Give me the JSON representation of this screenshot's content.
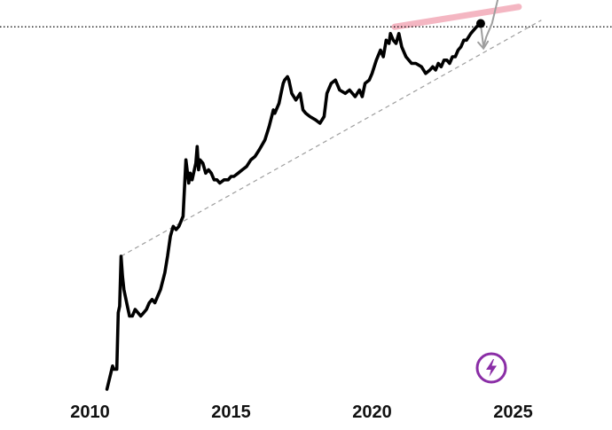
{
  "chart_data": {
    "type": "line",
    "title": "",
    "xlabel": "",
    "ylabel": "",
    "xlim": [
      2008.6,
      2028.0
    ],
    "ylog": true,
    "grid": false,
    "legend": "none",
    "x_ticks": [
      2010,
      2015,
      2020,
      2025
    ],
    "x_tick_labels": [
      "2010",
      "2015",
      "2020",
      "2025"
    ],
    "series": [
      {
        "color": "#000000",
        "points": [
          [
            2010.6,
            0.0
          ],
          [
            2010.8,
            0.7
          ],
          [
            2010.85,
            0.6
          ],
          [
            2010.95,
            0.6
          ],
          [
            2011.0,
            2.3
          ],
          [
            2011.05,
            2.5
          ],
          [
            2011.1,
            4.0
          ],
          [
            2011.15,
            3.4
          ],
          [
            2011.2,
            3.0
          ],
          [
            2011.3,
            2.6
          ],
          [
            2011.4,
            2.2
          ],
          [
            2011.5,
            2.2
          ],
          [
            2011.6,
            2.4
          ],
          [
            2011.7,
            2.3
          ],
          [
            2011.8,
            2.2
          ],
          [
            2011.9,
            2.3
          ],
          [
            2012.0,
            2.4
          ],
          [
            2012.1,
            2.6
          ],
          [
            2012.2,
            2.7
          ],
          [
            2012.3,
            2.6
          ],
          [
            2012.4,
            2.8
          ],
          [
            2012.5,
            3.0
          ],
          [
            2012.65,
            3.5
          ],
          [
            2012.75,
            4.0
          ],
          [
            2012.85,
            4.6
          ],
          [
            2012.95,
            4.9
          ],
          [
            2013.05,
            4.8
          ],
          [
            2013.15,
            4.9
          ],
          [
            2013.3,
            5.2
          ],
          [
            2013.4,
            6.9
          ],
          [
            2013.5,
            6.2
          ],
          [
            2013.55,
            6.5
          ],
          [
            2013.62,
            6.3
          ],
          [
            2013.75,
            6.8
          ],
          [
            2013.8,
            7.3
          ],
          [
            2013.85,
            6.6
          ],
          [
            2013.9,
            6.9
          ],
          [
            2014.0,
            6.8
          ],
          [
            2014.1,
            6.5
          ],
          [
            2014.2,
            6.6
          ],
          [
            2014.3,
            6.5
          ],
          [
            2014.4,
            6.3
          ],
          [
            2014.5,
            6.3
          ],
          [
            2014.6,
            6.2
          ],
          [
            2014.75,
            6.3
          ],
          [
            2014.9,
            6.3
          ],
          [
            2015.0,
            6.4
          ],
          [
            2015.1,
            6.4
          ],
          [
            2015.25,
            6.5
          ],
          [
            2015.4,
            6.6
          ],
          [
            2015.55,
            6.7
          ],
          [
            2015.7,
            6.9
          ],
          [
            2015.85,
            7.0
          ],
          [
            2016.0,
            7.2
          ],
          [
            2016.2,
            7.5
          ],
          [
            2016.35,
            7.9
          ],
          [
            2016.5,
            8.4
          ],
          [
            2016.55,
            8.3
          ],
          [
            2016.7,
            8.6
          ],
          [
            2016.75,
            8.8
          ],
          [
            2016.85,
            9.2
          ],
          [
            2016.9,
            9.3
          ],
          [
            2017.0,
            9.4
          ],
          [
            2017.05,
            9.3
          ],
          [
            2017.15,
            8.9
          ],
          [
            2017.3,
            8.7
          ],
          [
            2017.45,
            8.9
          ],
          [
            2017.55,
            8.4
          ],
          [
            2017.65,
            8.3
          ],
          [
            2017.8,
            8.2
          ],
          [
            2018.0,
            8.1
          ],
          [
            2018.15,
            8.0
          ],
          [
            2018.3,
            8.2
          ],
          [
            2018.4,
            8.9
          ],
          [
            2018.55,
            9.2
          ],
          [
            2018.7,
            9.3
          ],
          [
            2018.85,
            9.0
          ],
          [
            2019.05,
            8.9
          ],
          [
            2019.2,
            9.0
          ],
          [
            2019.4,
            8.8
          ],
          [
            2019.55,
            9.0
          ],
          [
            2019.65,
            8.8
          ],
          [
            2019.75,
            9.2
          ],
          [
            2019.9,
            9.3
          ],
          [
            2020.0,
            9.5
          ],
          [
            2020.15,
            9.9
          ],
          [
            2020.3,
            10.2
          ],
          [
            2020.4,
            10.0
          ],
          [
            2020.5,
            10.5
          ],
          [
            2020.6,
            10.4
          ],
          [
            2020.65,
            10.7
          ],
          [
            2020.75,
            10.5
          ],
          [
            2020.85,
            10.4
          ],
          [
            2020.95,
            10.7
          ],
          [
            2021.05,
            10.3
          ],
          [
            2021.2,
            10.0
          ],
          [
            2021.4,
            9.8
          ],
          [
            2021.55,
            9.8
          ],
          [
            2021.75,
            9.7
          ],
          [
            2021.9,
            9.5
          ],
          [
            2022.05,
            9.6
          ],
          [
            2022.15,
            9.7
          ],
          [
            2022.25,
            9.6
          ],
          [
            2022.35,
            9.8
          ],
          [
            2022.45,
            9.7
          ],
          [
            2022.55,
            9.9
          ],
          [
            2022.65,
            9.9
          ],
          [
            2022.75,
            9.8
          ],
          [
            2022.85,
            10.0
          ],
          [
            2022.95,
            10.0
          ],
          [
            2023.05,
            10.2
          ],
          [
            2023.15,
            10.3
          ],
          [
            2023.25,
            10.5
          ],
          [
            2023.35,
            10.5
          ],
          [
            2023.5,
            10.7
          ],
          [
            2023.7,
            10.9
          ],
          [
            2023.85,
            11.0
          ]
        ]
      },
      {
        "color": "#9e9e9e",
        "points": [
          [
            2023.85,
            11.0
          ],
          [
            2023.95,
            10.3
          ],
          [
            2024.05,
            10.6
          ],
          [
            2024.25,
            11.0
          ],
          [
            2024.45,
            11.7
          ]
        ]
      }
    ],
    "annotations": [
      {
        "type": "support-line",
        "style": "dashed",
        "color": "#9e9e9e",
        "points": [
          [
            2011.1,
            4.0
          ],
          [
            2026.0,
            11.1
          ]
        ]
      },
      {
        "type": "resistance-band",
        "color": "#f4b6c2",
        "points": [
          [
            2020.8,
            10.9
          ],
          [
            2025.2,
            11.5
          ]
        ]
      },
      {
        "type": "reference-line",
        "style": "dotted",
        "color": "#000000",
        "y": 10.9
      },
      {
        "type": "current-point",
        "color": "#000000",
        "x": 2023.85,
        "y": 11.0
      }
    ]
  },
  "badge": {
    "icon": "lightning-bolt-icon",
    "color": "#8a2da6"
  }
}
